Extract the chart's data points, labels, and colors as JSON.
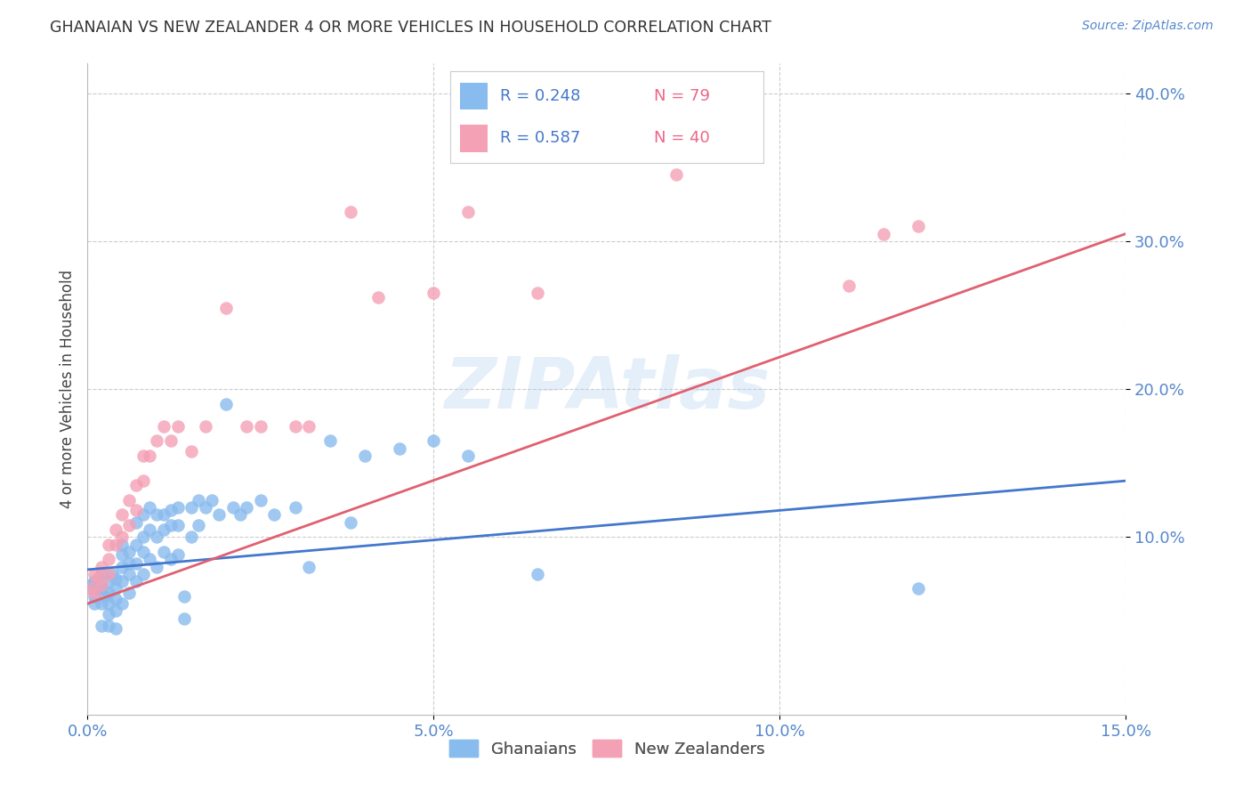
{
  "title": "GHANAIAN VS NEW ZEALANDER 4 OR MORE VEHICLES IN HOUSEHOLD CORRELATION CHART",
  "source": "Source: ZipAtlas.com",
  "ylabel_label": "4 or more Vehicles in Household",
  "watermark": "ZIPAtlas",
  "xlim": [
    0.0,
    0.15
  ],
  "ylim": [
    -0.02,
    0.42
  ],
  "xticks": [
    0.0,
    0.05,
    0.1,
    0.15
  ],
  "yticks": [
    0.1,
    0.2,
    0.3,
    0.4
  ],
  "ytick_labels": [
    "10.0%",
    "20.0%",
    "30.0%",
    "40.0%"
  ],
  "xtick_labels": [
    "0.0%",
    "5.0%",
    "10.0%",
    "15.0%"
  ],
  "legend_r_blue": "R = 0.248",
  "legend_n_blue": "N = 79",
  "legend_r_pink": "R = 0.587",
  "legend_n_pink": "N = 40",
  "blue_color": "#88BBEE",
  "pink_color": "#F4A0B5",
  "blue_line_color": "#4477CC",
  "pink_line_color": "#E06070",
  "axis_color": "#5588CC",
  "title_color": "#333333",
  "grid_color": "#CCCCCC",
  "background_color": "#FFFFFF",
  "blue_line_x": [
    0.0,
    0.15
  ],
  "blue_line_y": [
    0.078,
    0.138
  ],
  "pink_line_x": [
    0.0,
    0.15
  ],
  "pink_line_y": [
    0.055,
    0.305
  ],
  "ghanaians_x": [
    0.0005,
    0.001,
    0.001,
    0.001,
    0.0015,
    0.0015,
    0.002,
    0.002,
    0.002,
    0.002,
    0.0025,
    0.003,
    0.003,
    0.003,
    0.003,
    0.003,
    0.0035,
    0.004,
    0.004,
    0.004,
    0.004,
    0.004,
    0.005,
    0.005,
    0.005,
    0.005,
    0.005,
    0.006,
    0.006,
    0.006,
    0.006,
    0.007,
    0.007,
    0.007,
    0.007,
    0.008,
    0.008,
    0.008,
    0.008,
    0.009,
    0.009,
    0.009,
    0.01,
    0.01,
    0.01,
    0.011,
    0.011,
    0.011,
    0.012,
    0.012,
    0.012,
    0.013,
    0.013,
    0.013,
    0.014,
    0.014,
    0.015,
    0.015,
    0.016,
    0.016,
    0.017,
    0.018,
    0.019,
    0.02,
    0.021,
    0.022,
    0.023,
    0.025,
    0.027,
    0.03,
    0.032,
    0.035,
    0.038,
    0.04,
    0.045,
    0.05,
    0.055,
    0.065,
    0.12
  ],
  "ghanaians_y": [
    0.068,
    0.06,
    0.07,
    0.055,
    0.065,
    0.072,
    0.055,
    0.065,
    0.075,
    0.04,
    0.06,
    0.062,
    0.07,
    0.055,
    0.048,
    0.04,
    0.075,
    0.072,
    0.065,
    0.058,
    0.05,
    0.038,
    0.095,
    0.088,
    0.08,
    0.07,
    0.055,
    0.09,
    0.082,
    0.075,
    0.062,
    0.11,
    0.095,
    0.082,
    0.07,
    0.115,
    0.1,
    0.09,
    0.075,
    0.12,
    0.105,
    0.085,
    0.115,
    0.1,
    0.08,
    0.115,
    0.105,
    0.09,
    0.118,
    0.108,
    0.085,
    0.12,
    0.108,
    0.088,
    0.06,
    0.045,
    0.12,
    0.1,
    0.125,
    0.108,
    0.12,
    0.125,
    0.115,
    0.19,
    0.12,
    0.115,
    0.12,
    0.125,
    0.115,
    0.12,
    0.08,
    0.165,
    0.11,
    0.155,
    0.16,
    0.165,
    0.155,
    0.075,
    0.065
  ],
  "nz_x": [
    0.0005,
    0.001,
    0.001,
    0.0015,
    0.002,
    0.002,
    0.003,
    0.003,
    0.003,
    0.004,
    0.004,
    0.005,
    0.005,
    0.006,
    0.006,
    0.007,
    0.007,
    0.008,
    0.008,
    0.009,
    0.01,
    0.011,
    0.012,
    0.013,
    0.015,
    0.017,
    0.02,
    0.023,
    0.025,
    0.03,
    0.032,
    0.038,
    0.042,
    0.05,
    0.055,
    0.065,
    0.085,
    0.11,
    0.115,
    0.12
  ],
  "nz_y": [
    0.065,
    0.075,
    0.062,
    0.072,
    0.08,
    0.068,
    0.095,
    0.085,
    0.075,
    0.105,
    0.095,
    0.115,
    0.1,
    0.125,
    0.108,
    0.135,
    0.118,
    0.155,
    0.138,
    0.155,
    0.165,
    0.175,
    0.165,
    0.175,
    0.158,
    0.175,
    0.255,
    0.175,
    0.175,
    0.175,
    0.175,
    0.32,
    0.262,
    0.265,
    0.32,
    0.265,
    0.345,
    0.27,
    0.305,
    0.31
  ]
}
